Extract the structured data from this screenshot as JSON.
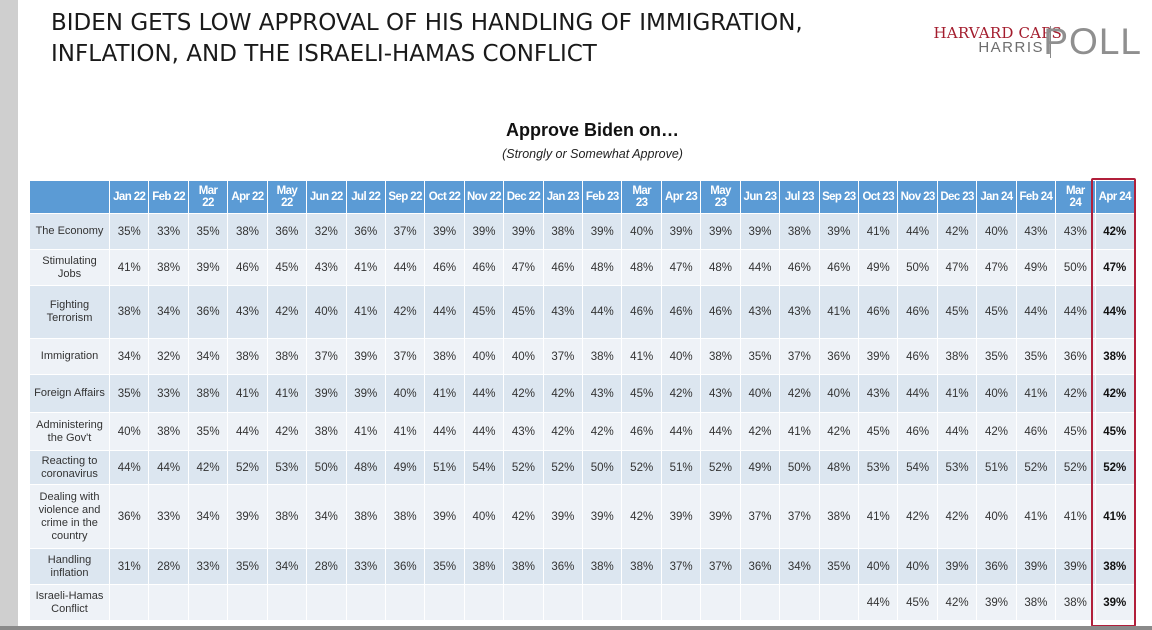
{
  "headline": {
    "line1": "BIDEN GETS LOW APPROVAL OF HIS HANDLING OF IMMIGRATION,",
    "line2": "INFLATION, AND THE ISRAELI-HAMAS CONFLICT"
  },
  "logo": {
    "line1": "HARVARD CAPS",
    "line2": "HARRIS",
    "line3": "POLL",
    "brand_color": "#a31c2d"
  },
  "subtitle": "Approve Biden on…",
  "subtitle2": "(Strongly or Somewhat Approve)",
  "colors": {
    "header_bg": "#5b9bd5",
    "row_dark": "#dce6f0",
    "row_light": "#eef2f7",
    "highlight_border": "#b11f3a"
  },
  "table": {
    "columns": [
      [
        "Jan 22"
      ],
      [
        "Feb 22"
      ],
      [
        "Mar",
        "22"
      ],
      [
        "Apr 22"
      ],
      [
        "May",
        "22"
      ],
      [
        "Jun 22"
      ],
      [
        "Jul 22"
      ],
      [
        "Sep 22"
      ],
      [
        "Oct 22"
      ],
      [
        "Nov 22"
      ],
      [
        "Dec 22"
      ],
      [
        "Jan 23"
      ],
      [
        "Feb 23"
      ],
      [
        "Mar",
        "23"
      ],
      [
        "Apr 23"
      ],
      [
        "May",
        "23"
      ],
      [
        "Jun 23"
      ],
      [
        "Jul 23"
      ],
      [
        "Sep 23"
      ],
      [
        "Oct 23"
      ],
      [
        "Nov 23"
      ],
      [
        "Dec 23"
      ],
      [
        "Jan 24"
      ],
      [
        "Feb 24"
      ],
      [
        "Mar",
        "24"
      ],
      [
        "Apr 24"
      ]
    ],
    "rows": [
      {
        "label": [
          "The Economy"
        ],
        "values": [
          "35%",
          "33%",
          "35%",
          "38%",
          "36%",
          "32%",
          "36%",
          "37%",
          "39%",
          "39%",
          "39%",
          "38%",
          "39%",
          "40%",
          "39%",
          "39%",
          "39%",
          "38%",
          "39%",
          "41%",
          "44%",
          "42%",
          "40%",
          "43%",
          "43%",
          "42%"
        ]
      },
      {
        "label": [
          "Stimulating",
          "Jobs"
        ],
        "values": [
          "41%",
          "38%",
          "39%",
          "46%",
          "45%",
          "43%",
          "41%",
          "44%",
          "46%",
          "46%",
          "47%",
          "46%",
          "48%",
          "48%",
          "47%",
          "48%",
          "44%",
          "46%",
          "46%",
          "49%",
          "50%",
          "47%",
          "47%",
          "49%",
          "50%",
          "47%"
        ]
      },
      {
        "label": [
          "Fighting",
          "Terrorism"
        ],
        "values": [
          "38%",
          "34%",
          "36%",
          "43%",
          "42%",
          "40%",
          "41%",
          "42%",
          "44%",
          "45%",
          "45%",
          "43%",
          "44%",
          "46%",
          "46%",
          "46%",
          "43%",
          "43%",
          "41%",
          "46%",
          "46%",
          "45%",
          "45%",
          "44%",
          "44%",
          "44%"
        ]
      },
      {
        "label": [
          "Immigration"
        ],
        "values": [
          "34%",
          "32%",
          "34%",
          "38%",
          "38%",
          "37%",
          "39%",
          "37%",
          "38%",
          "40%",
          "40%",
          "37%",
          "38%",
          "41%",
          "40%",
          "38%",
          "35%",
          "37%",
          "36%",
          "39%",
          "46%",
          "38%",
          "35%",
          "35%",
          "36%",
          "38%"
        ]
      },
      {
        "label": [
          "Foreign Affairs"
        ],
        "values": [
          "35%",
          "33%",
          "38%",
          "41%",
          "41%",
          "39%",
          "39%",
          "40%",
          "41%",
          "44%",
          "42%",
          "42%",
          "43%",
          "45%",
          "42%",
          "43%",
          "40%",
          "42%",
          "40%",
          "43%",
          "44%",
          "41%",
          "40%",
          "41%",
          "42%",
          "42%"
        ]
      },
      {
        "label": [
          "Administering",
          "the Gov't"
        ],
        "values": [
          "40%",
          "38%",
          "35%",
          "44%",
          "42%",
          "38%",
          "41%",
          "41%",
          "44%",
          "44%",
          "43%",
          "42%",
          "42%",
          "46%",
          "44%",
          "44%",
          "42%",
          "41%",
          "42%",
          "45%",
          "46%",
          "44%",
          "42%",
          "46%",
          "45%",
          "45%"
        ]
      },
      {
        "label": [
          "Reacting to",
          "coronavirus"
        ],
        "values": [
          "44%",
          "44%",
          "42%",
          "52%",
          "53%",
          "50%",
          "48%",
          "49%",
          "51%",
          "54%",
          "52%",
          "52%",
          "50%",
          "52%",
          "51%",
          "52%",
          "49%",
          "50%",
          "48%",
          "53%",
          "54%",
          "53%",
          "51%",
          "52%",
          "52%",
          "52%"
        ]
      },
      {
        "label": [
          "Dealing with",
          "violence and",
          "crime in the",
          "country"
        ],
        "values": [
          "36%",
          "33%",
          "34%",
          "39%",
          "38%",
          "34%",
          "38%",
          "38%",
          "39%",
          "40%",
          "42%",
          "39%",
          "39%",
          "42%",
          "39%",
          "39%",
          "37%",
          "37%",
          "38%",
          "41%",
          "42%",
          "42%",
          "40%",
          "41%",
          "41%",
          "41%"
        ]
      },
      {
        "label": [
          "Handling",
          "inflation"
        ],
        "values": [
          "31%",
          "28%",
          "33%",
          "35%",
          "34%",
          "28%",
          "33%",
          "36%",
          "35%",
          "38%",
          "38%",
          "36%",
          "38%",
          "38%",
          "37%",
          "37%",
          "36%",
          "34%",
          "35%",
          "40%",
          "40%",
          "39%",
          "36%",
          "39%",
          "39%",
          "38%"
        ]
      },
      {
        "label": [
          "Israeli-Hamas",
          "Conflict"
        ],
        "values": [
          "",
          "",
          "",
          "",
          "",
          "",
          "",
          "",
          "",
          "",
          "",
          "",
          "",
          "",
          "",
          "",
          "",
          "",
          "",
          "44%",
          "45%",
          "42%",
          "39%",
          "38%",
          "38%",
          "39%"
        ]
      }
    ]
  }
}
